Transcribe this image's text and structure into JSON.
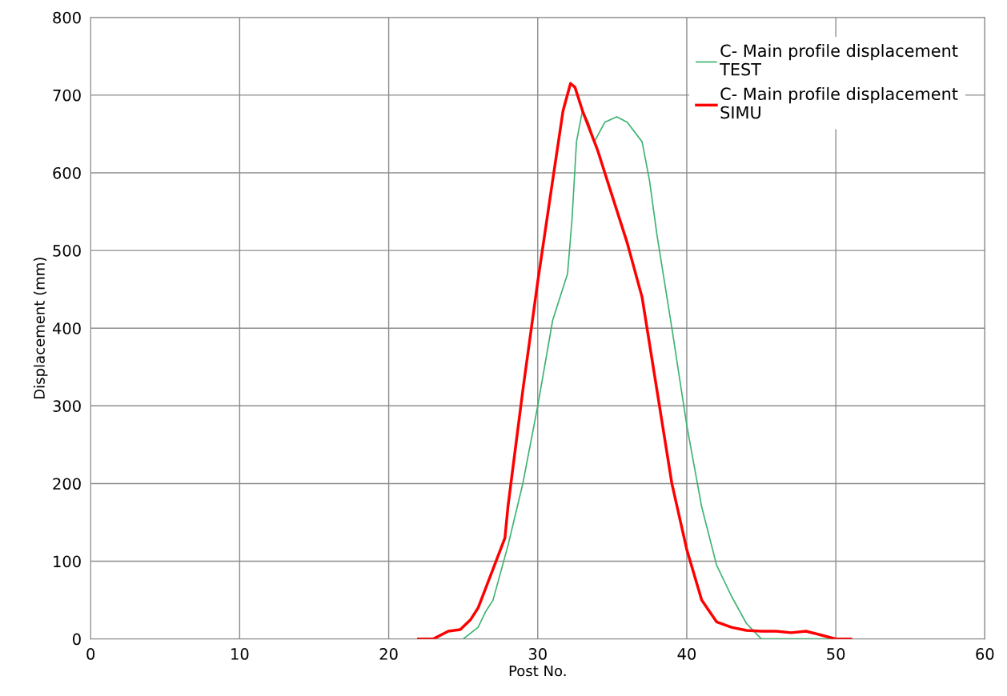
{
  "chart_data": {
    "type": "line",
    "xlabel": "Post No.",
    "ylabel": "Displacement (mm)",
    "xlim": [
      0,
      60
    ],
    "xticks": [
      0,
      10,
      20,
      30,
      40,
      50,
      60
    ],
    "ylim": [
      0,
      800
    ],
    "yticks": [
      0,
      100,
      200,
      300,
      400,
      500,
      600,
      700,
      800
    ],
    "grid": true,
    "legend": "top right",
    "marker": "none",
    "line_style": "solid",
    "series": [
      {
        "name": "C- Main profile displacement TEST",
        "color": "#3cb371",
        "x": [
          25,
          26,
          26.5,
          27,
          28,
          29,
          30,
          31,
          31.5,
          32,
          32.3,
          32.6,
          33,
          33.4,
          33.8,
          34.5,
          35.3,
          36,
          37,
          37.5,
          38,
          39,
          40,
          41,
          42,
          43,
          44,
          45,
          46,
          48,
          50
        ],
        "values": [
          0,
          15,
          35,
          50,
          120,
          200,
          300,
          410,
          440,
          470,
          540,
          640,
          680,
          665,
          640,
          665,
          672,
          665,
          640,
          590,
          520,
          400,
          275,
          170,
          95,
          55,
          20,
          0,
          0,
          0,
          0
        ]
      },
      {
        "name": "C- Main profile displacement SIMU",
        "color": "#ff0000",
        "x": [
          22,
          23,
          23.5,
          24,
          24.8,
          25.5,
          26,
          27,
          27.8,
          28,
          29,
          30,
          31,
          31.7,
          32.2,
          32.5,
          33,
          34,
          35,
          36,
          37,
          38,
          39,
          40,
          41,
          42,
          43,
          44,
          45,
          46,
          47,
          48,
          49,
          50,
          51
        ],
        "values": [
          0,
          0,
          5,
          10,
          12,
          25,
          40,
          90,
          130,
          170,
          320,
          460,
          590,
          680,
          715,
          710,
          680,
          630,
          570,
          510,
          440,
          320,
          200,
          115,
          50,
          22,
          15,
          11,
          10,
          10,
          8,
          10,
          5,
          0,
          0
        ]
      }
    ]
  }
}
